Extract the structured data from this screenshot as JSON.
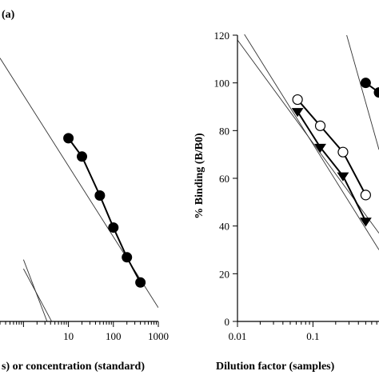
{
  "chart_data": [
    {
      "type": "scatter",
      "panel_label": "(a)",
      "xlabel": "s) or concentration (standard)",
      "x_scale": "log",
      "xlim": [
        0.3,
        1000
      ],
      "ylim": [
        10,
        135
      ],
      "x_tick_labels": [
        "10",
        "100",
        "1000"
      ],
      "x_ticks": [
        10,
        100,
        1000
      ],
      "series": [
        {
          "marker": "filled-circle",
          "x": [
            10,
            20,
            50,
            100,
            200,
            400
          ],
          "y": [
            90,
            82,
            65,
            51,
            38,
            27
          ]
        }
      ],
      "reference_lines": [
        {
          "p1": [
            0.3,
            125
          ],
          "p2": [
            1000,
            16
          ]
        },
        {
          "p1": [
            1,
            33
          ],
          "p2": [
            4.5,
            9
          ]
        },
        {
          "p1": [
            1,
            37
          ],
          "p2": [
            3.5,
            9
          ]
        }
      ]
    },
    {
      "type": "scatter",
      "xlabel": "Dilution factor (samples)",
      "ylabel": "% Binding (B/B0)",
      "x_scale": "log",
      "xlim": [
        0.01,
        0.75
      ],
      "ylim": [
        0,
        120
      ],
      "x_tick_labels": [
        "0.01",
        "0.1"
      ],
      "x_ticks": [
        0.01,
        0.1
      ],
      "y_tick_labels": [
        "0",
        "20",
        "40",
        "60",
        "80",
        "100",
        "120"
      ],
      "y_ticks": [
        0,
        20,
        40,
        60,
        80,
        100,
        120
      ],
      "series": [
        {
          "marker": "filled-circle",
          "x": [
            0.5,
            0.75
          ],
          "y": [
            100,
            96
          ]
        },
        {
          "marker": "open-circle",
          "x": [
            0.0625,
            0.125,
            0.25,
            0.5
          ],
          "y": [
            93,
            82,
            71,
            53
          ]
        },
        {
          "marker": "filled-triangle-down",
          "x": [
            0.0625,
            0.125,
            0.25,
            0.5
          ],
          "y": [
            88,
            73,
            61,
            42
          ]
        }
      ],
      "reference_lines": [
        {
          "p1": [
            0.01,
            125
          ],
          "p2": [
            0.75,
            30
          ]
        },
        {
          "p1": [
            0.01,
            118
          ],
          "p2": [
            0.75,
            37
          ]
        },
        {
          "p1": [
            0.28,
            120
          ],
          "p2": [
            0.75,
            72
          ]
        }
      ]
    }
  ]
}
